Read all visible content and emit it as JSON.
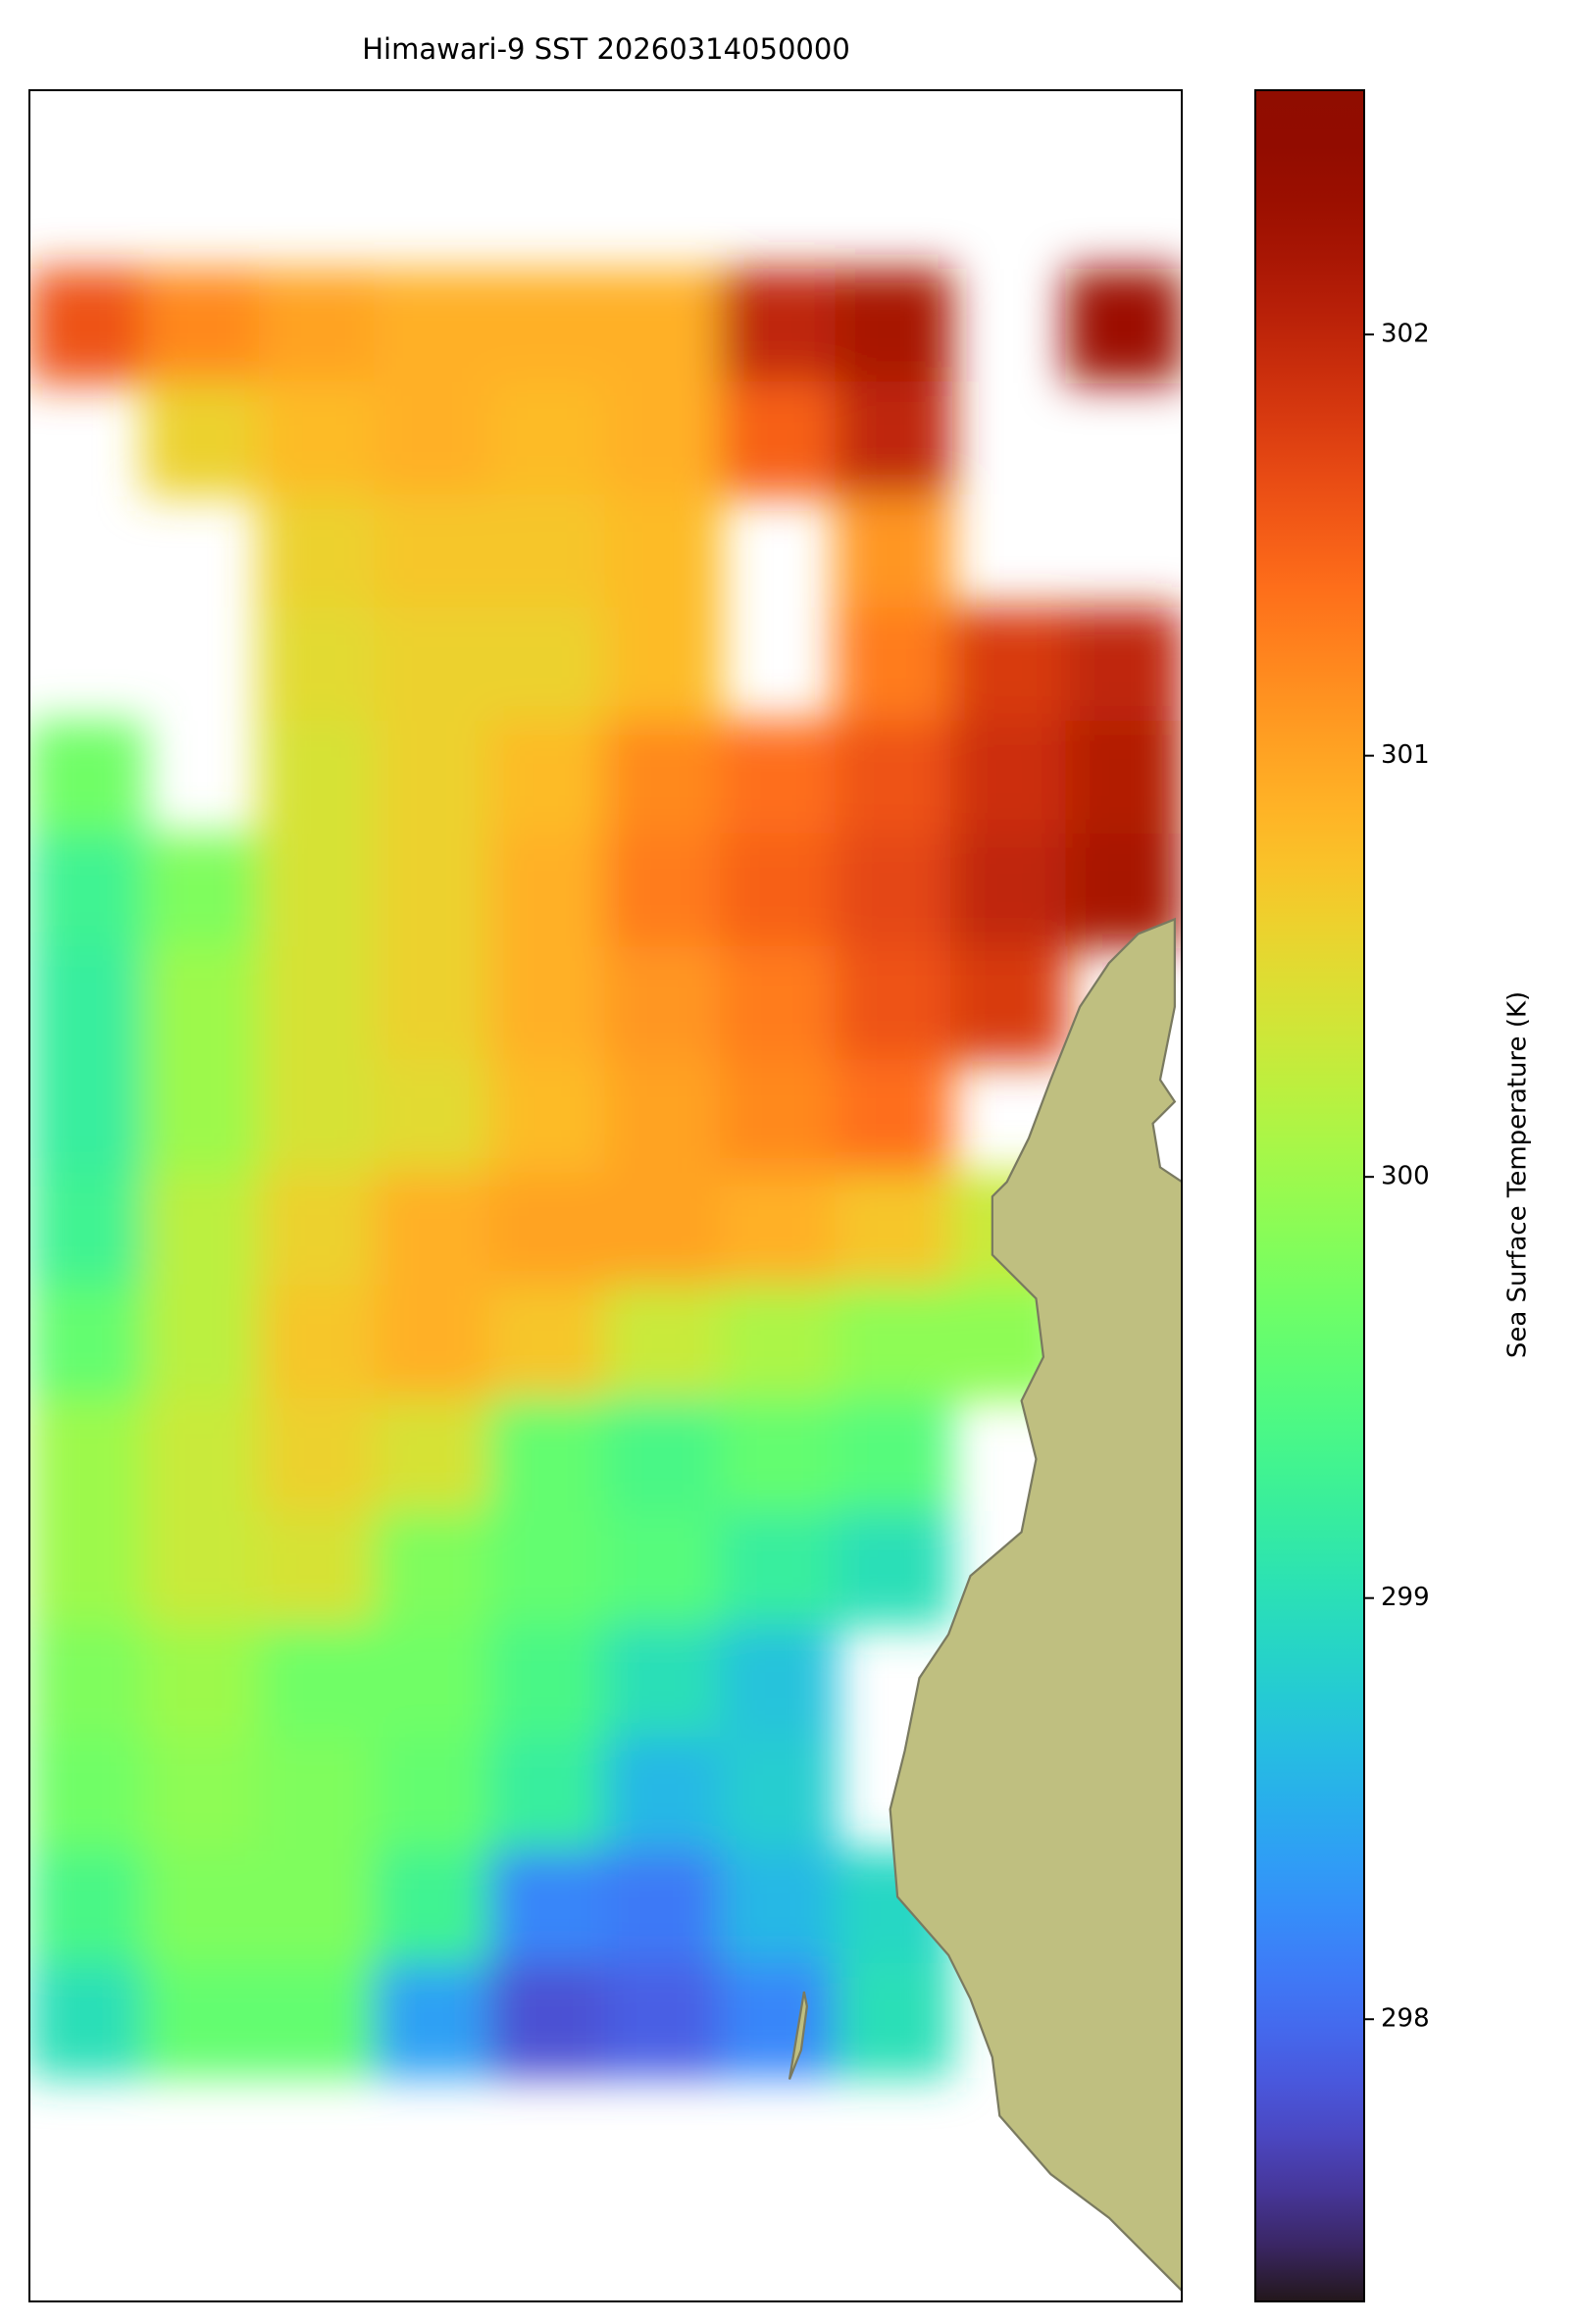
{
  "chart_data": {
    "type": "heatmap",
    "title": "Himawari-9 SST 20260314050000",
    "colorbar_label": "Sea Surface Temperature (K)",
    "cmap": "turbo",
    "clim": [
      297.33,
      302.58
    ],
    "cticks": [
      298,
      299,
      300,
      301,
      302
    ],
    "values": [
      [
        301.6,
        301.2,
        301.0,
        300.9,
        300.9,
        300.9,
        302.0,
        302.2,
        null,
        302.3
      ],
      [
        null,
        300.6,
        300.8,
        300.9,
        300.8,
        300.9,
        301.5,
        302.0,
        null,
        null
      ],
      [
        null,
        null,
        300.6,
        300.7,
        300.7,
        300.8,
        null,
        301.1,
        null,
        null
      ],
      [
        null,
        null,
        300.5,
        300.6,
        300.6,
        300.8,
        null,
        301.3,
        301.8,
        302.0
      ],
      [
        299.7,
        null,
        300.4,
        300.6,
        300.8,
        301.2,
        301.4,
        301.6,
        301.9,
        302.1
      ],
      [
        299.3,
        299.8,
        300.4,
        300.6,
        300.9,
        301.3,
        301.5,
        301.7,
        302.0,
        302.2
      ],
      [
        299.2,
        300.0,
        300.4,
        300.6,
        300.9,
        301.1,
        301.3,
        301.6,
        301.8,
        null
      ],
      [
        299.2,
        300.0,
        300.4,
        300.5,
        300.8,
        301.0,
        301.2,
        301.4,
        null,
        null
      ],
      [
        299.3,
        300.2,
        300.6,
        300.9,
        301.0,
        301.0,
        300.9,
        300.7,
        300.3,
        null
      ],
      [
        299.6,
        300.2,
        300.7,
        300.9,
        300.7,
        300.3,
        300.1,
        299.9,
        299.9,
        null
      ],
      [
        300.0,
        300.3,
        300.6,
        300.4,
        299.6,
        299.4,
        299.6,
        299.5,
        null,
        null
      ],
      [
        300.0,
        300.3,
        300.4,
        299.8,
        299.6,
        299.5,
        299.2,
        299.0,
        null,
        null
      ],
      [
        299.8,
        300.0,
        299.7,
        299.7,
        299.4,
        299.0,
        298.7,
        null,
        null,
        null
      ],
      [
        299.7,
        299.9,
        299.8,
        299.6,
        299.2,
        298.6,
        298.8,
        null,
        null,
        null
      ],
      [
        299.4,
        299.8,
        299.8,
        299.3,
        298.2,
        298.1,
        298.6,
        298.9,
        null,
        null
      ],
      [
        299.0,
        299.6,
        299.6,
        298.4,
        297.8,
        297.9,
        298.2,
        299.0,
        null,
        null
      ]
    ]
  }
}
